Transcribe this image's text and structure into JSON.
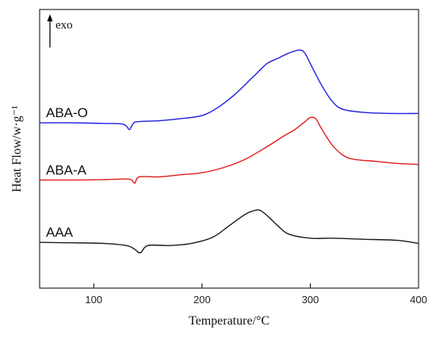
{
  "chart_data": {
    "type": "line",
    "title": "",
    "xlabel": "Temperature/°C",
    "ylabel": "Heat Flow/w·g⁻¹",
    "xlim": [
      50,
      400
    ],
    "xticks": [
      100,
      200,
      300,
      400
    ],
    "yticks_shown": false,
    "grid": false,
    "legend": "none",
    "annotation": {
      "text": "exo",
      "direction": "up"
    },
    "series": [
      {
        "name": "ABA-O",
        "color": "#1f1fe0",
        "x": [
          50,
          80,
          110,
          125,
          130,
          133,
          136,
          140,
          160,
          180,
          200,
          215,
          230,
          240,
          250,
          260,
          270,
          280,
          290,
          295,
          300,
          310,
          320,
          330,
          350,
          375,
          400
        ],
        "y": [
          5.75,
          5.75,
          5.72,
          5.7,
          5.6,
          5.42,
          5.68,
          5.8,
          5.85,
          5.95,
          6.1,
          6.5,
          7.1,
          7.6,
          8.1,
          8.6,
          8.85,
          9.1,
          9.25,
          9.1,
          8.6,
          7.6,
          6.8,
          6.4,
          6.25,
          6.2,
          6.2
        ]
      },
      {
        "name": "ABA-A",
        "color": "#e01c1c",
        "x": [
          50,
          80,
          110,
          130,
          135,
          138,
          142,
          160,
          180,
          200,
          220,
          240,
          260,
          275,
          285,
          295,
          300,
          305,
          310,
          320,
          330,
          340,
          360,
          380,
          400
        ],
        "y": [
          3.0,
          3.0,
          3.02,
          3.05,
          3.0,
          2.85,
          3.15,
          3.15,
          3.25,
          3.35,
          3.6,
          4.0,
          4.6,
          5.1,
          5.4,
          5.8,
          6.0,
          5.95,
          5.5,
          4.7,
          4.2,
          4.0,
          3.9,
          3.8,
          3.75
        ]
      },
      {
        "name": "AAA",
        "color": "#1a1a1a",
        "x": [
          50,
          80,
          110,
          130,
          137,
          143,
          150,
          170,
          190,
          210,
          225,
          240,
          250,
          255,
          262,
          270,
          280,
          300,
          320,
          350,
          380,
          400
        ],
        "y": [
          0.0,
          -0.02,
          -0.05,
          -0.15,
          -0.3,
          -0.5,
          -0.15,
          -0.15,
          -0.05,
          0.25,
          0.8,
          1.35,
          1.55,
          1.5,
          1.2,
          0.8,
          0.4,
          0.2,
          0.2,
          0.15,
          0.1,
          -0.05
        ]
      }
    ]
  }
}
